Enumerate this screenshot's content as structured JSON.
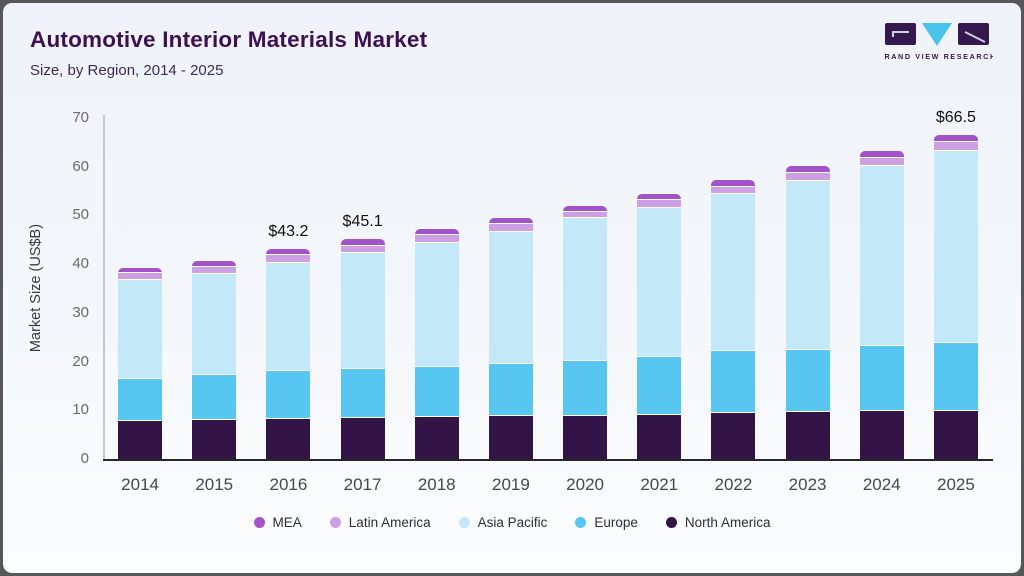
{
  "header": {
    "title": "Automotive Interior Materials Market",
    "subtitle": "Size, by Region, 2014 - 2025",
    "title_color": "#3c1053"
  },
  "logo": {
    "brand": "GRAND VIEW RESEARCH",
    "block_color": "#35184e",
    "triangle_color": "#49c3ea"
  },
  "chart_data": {
    "type": "bar",
    "variant": "stacked",
    "title": "Automotive Interior Materials Market",
    "subtitle": "Size, by Region, 2014 - 2025",
    "xlabel": "",
    "ylabel": "Market Size (US$B)",
    "ylim": [
      0,
      70
    ],
    "yticks": [
      0,
      10,
      20,
      30,
      40,
      50,
      60,
      70
    ],
    "grid": false,
    "categories": [
      "2014",
      "2015",
      "2016",
      "2017",
      "2018",
      "2019",
      "2020",
      "2021",
      "2022",
      "2023",
      "2024",
      "2025"
    ],
    "series": [
      {
        "name": "North America",
        "color": "#321447",
        "values": [
          7.8,
          8.1,
          8.3,
          8.4,
          8.6,
          8.8,
          8.9,
          9.1,
          9.4,
          9.6,
          9.8,
          9.9
        ]
      },
      {
        "name": "Europe",
        "color": "#57c7f1",
        "values": [
          8.6,
          9.1,
          9.8,
          10.0,
          10.2,
          10.8,
          11.3,
          11.8,
          12.8,
          12.8,
          13.4,
          13.9
        ]
      },
      {
        "name": "Asia Pacific",
        "color": "#c3e9f8",
        "values": [
          20.3,
          20.8,
          22.2,
          23.9,
          25.6,
          26.9,
          29.2,
          30.6,
          32.1,
          34.7,
          36.9,
          39.4
        ]
      },
      {
        "name": "Latin America",
        "color": "#cd9fe3",
        "values": [
          1.4,
          1.4,
          1.6,
          1.5,
          1.5,
          1.7,
          1.4,
          1.6,
          1.6,
          1.7,
          1.7,
          1.8
        ]
      },
      {
        "name": "MEA",
        "color": "#a353c9",
        "values": [
          1.1,
          1.2,
          1.3,
          1.3,
          1.3,
          1.3,
          1.2,
          1.2,
          1.3,
          1.3,
          1.4,
          1.5
        ]
      }
    ],
    "totals": [
      39.2,
      40.6,
      43.2,
      45.1,
      47.2,
      49.5,
      52.0,
      54.3,
      57.2,
      60.1,
      63.2,
      66.5
    ],
    "annotations": [
      {
        "category": "2016",
        "label": "$43.2"
      },
      {
        "category": "2017",
        "label": "$45.1"
      },
      {
        "category": "2025",
        "label": "$66.5"
      }
    ],
    "legend": [
      "MEA",
      "Latin America",
      "Asia Pacific",
      "Europe",
      "North America"
    ],
    "legend_position": "bottom"
  }
}
